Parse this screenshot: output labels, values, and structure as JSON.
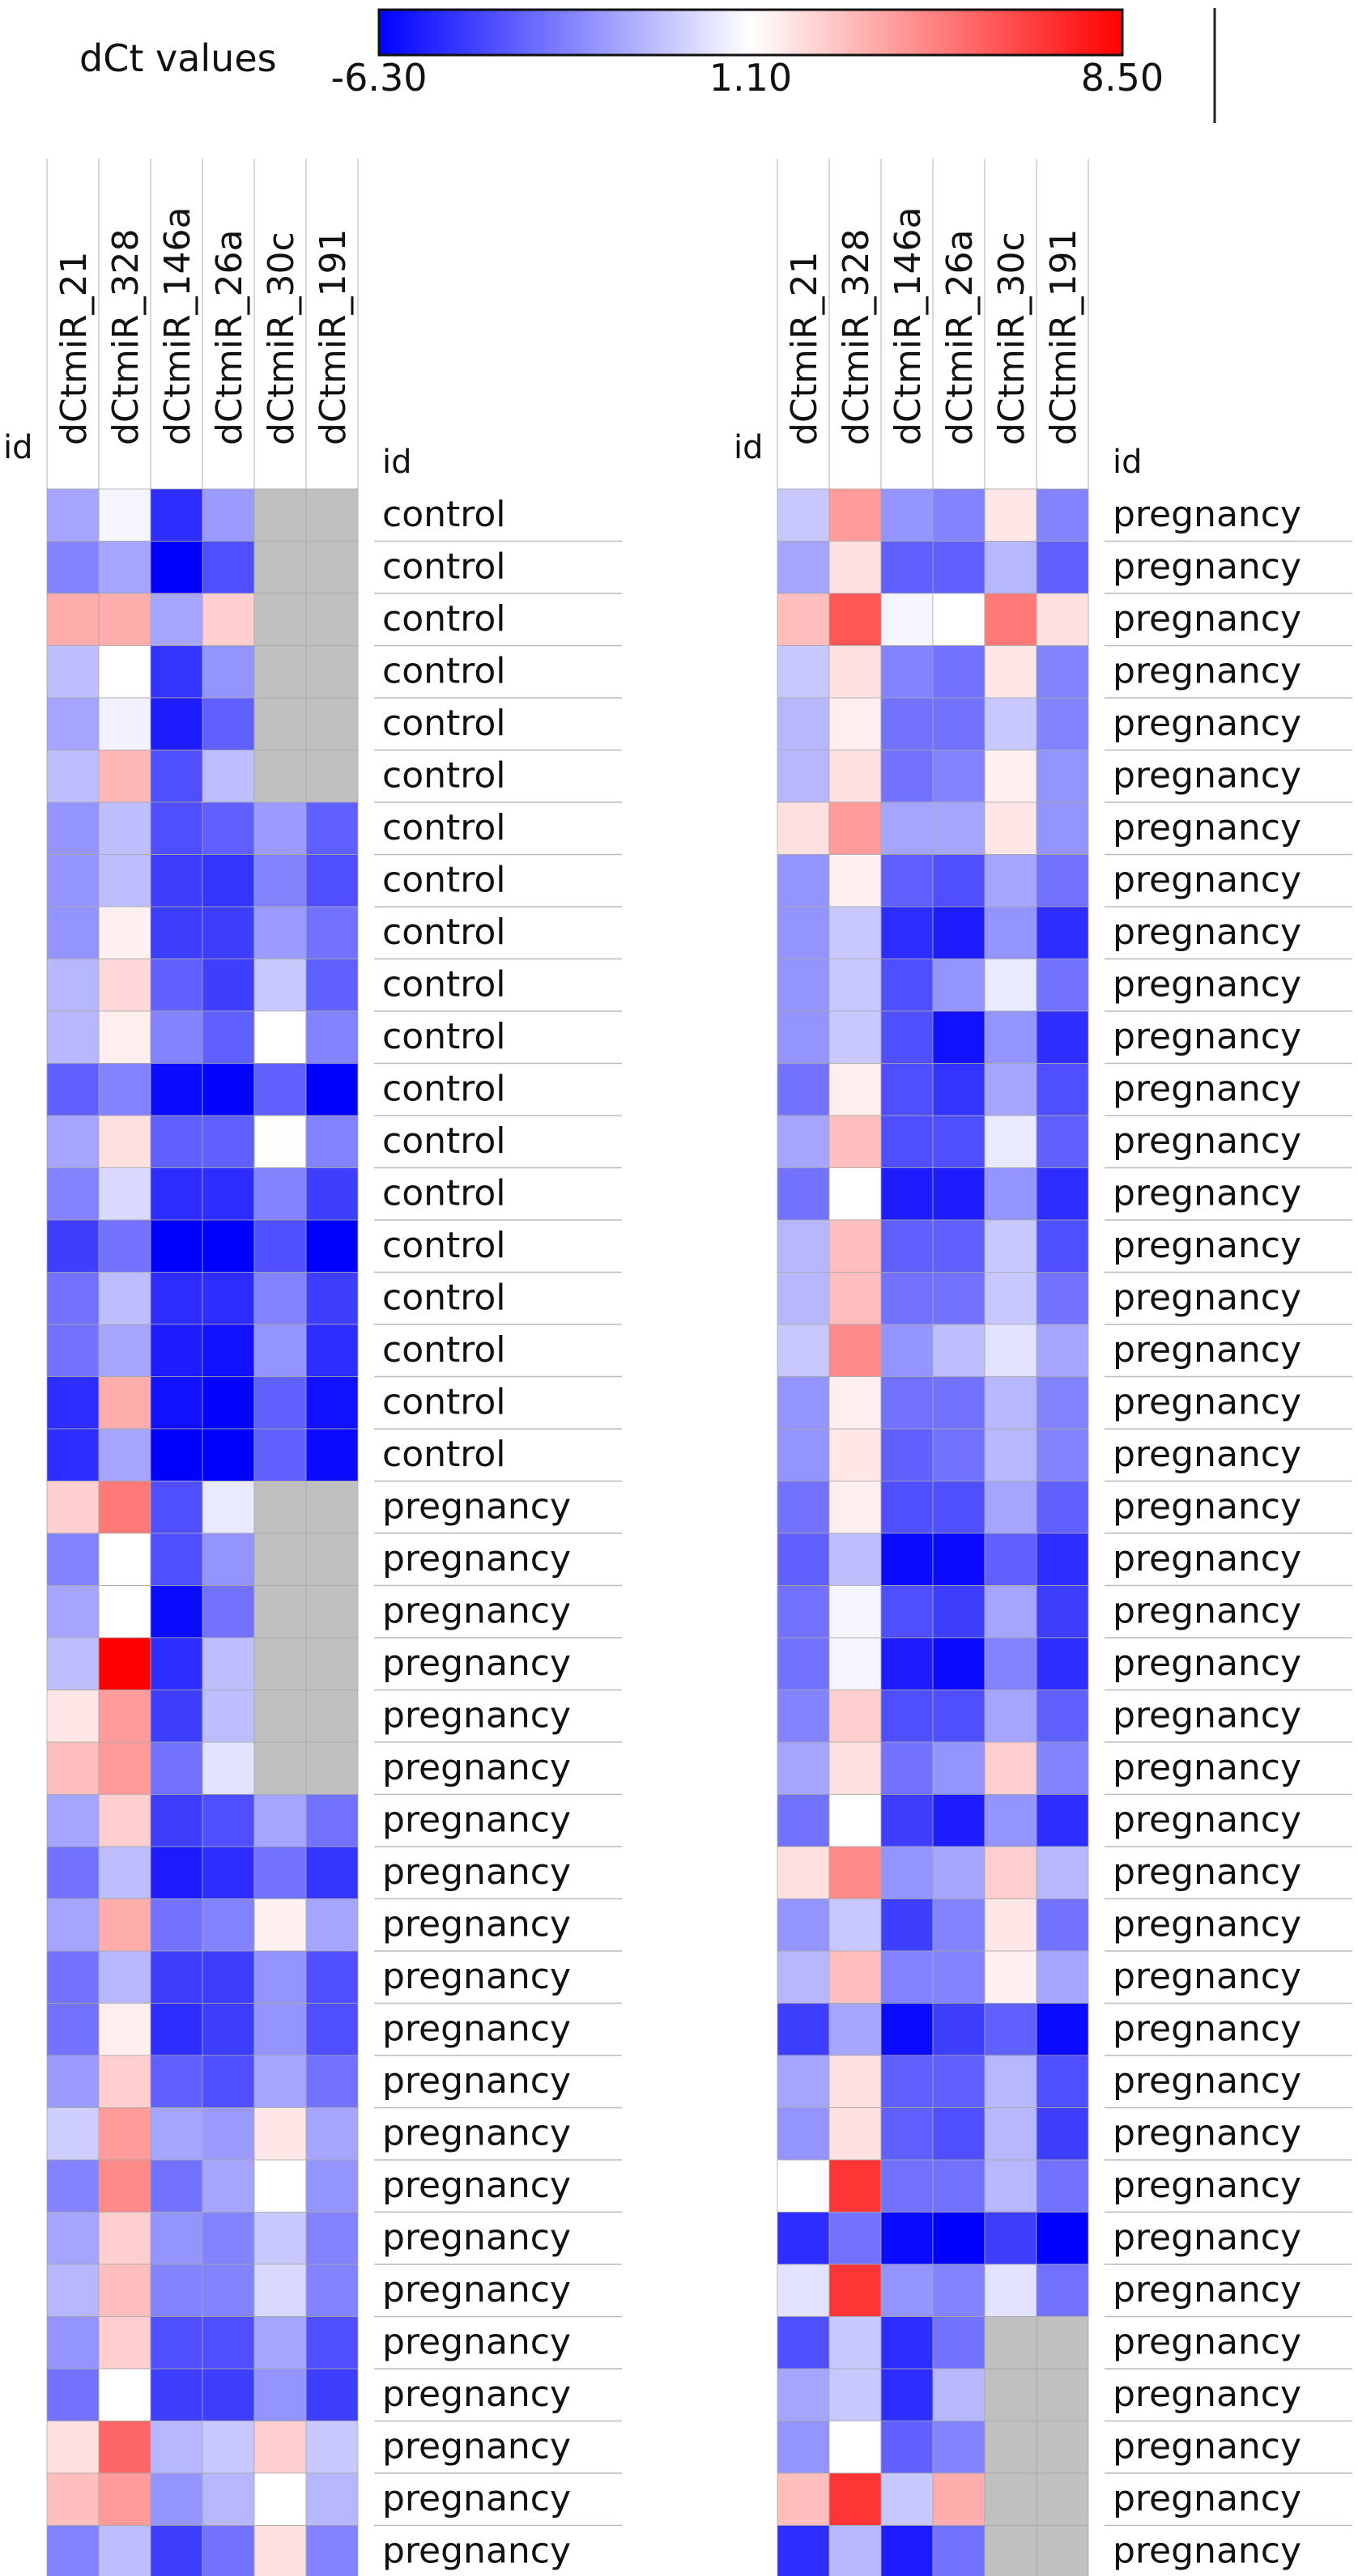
{
  "chart_data": {
    "type": "heatmap",
    "colorbar": {
      "label": "dCt values",
      "min": -6.3,
      "mid": 1.1,
      "max": 8.5,
      "tick_labels": [
        "-6.30",
        "1.10",
        "8.50"
      ],
      "colors": {
        "low": "#0000ff",
        "mid": "#ffffff",
        "high": "#ff0000",
        "missing": "#c0c0c0"
      }
    },
    "columns": [
      "dCtmiR_21",
      "dCtmiR_328",
      "dCtmiR_146a",
      "dCtmiR_26a",
      "dCtmiR_30c",
      "dCtmiR_191"
    ],
    "id_header": "id",
    "panels": [
      {
        "rows": [
          {
            "id": "control",
            "values": [
              -1.5,
              0.8,
              -5.0,
              -1.8,
              null,
              null
            ]
          },
          {
            "id": "control",
            "values": [
              -2.5,
              -1.5,
              -6.3,
              -4.0,
              null,
              null
            ]
          },
          {
            "id": "control",
            "values": [
              3.5,
              3.5,
              -1.5,
              2.5,
              null,
              null
            ]
          },
          {
            "id": "control",
            "values": [
              -0.8,
              1.1,
              -4.8,
              -2.0,
              null,
              null
            ]
          },
          {
            "id": "control",
            "values": [
              -1.5,
              0.7,
              -5.5,
              -3.5,
              null,
              null
            ]
          },
          {
            "id": "control",
            "values": [
              -0.8,
              3.2,
              -4.0,
              -0.8,
              null,
              null
            ]
          },
          {
            "id": "control",
            "values": [
              -2.0,
              -0.8,
              -4.0,
              -3.5,
              -1.8,
              -3.5
            ]
          },
          {
            "id": "control",
            "values": [
              -2.0,
              -0.8,
              -4.5,
              -4.8,
              -2.5,
              -4.0
            ]
          },
          {
            "id": "control",
            "values": [
              -2.0,
              1.5,
              -4.5,
              -4.5,
              -1.8,
              -3.0
            ]
          },
          {
            "id": "control",
            "values": [
              -1.0,
              2.2,
              -3.5,
              -4.5,
              -0.5,
              -3.5
            ]
          },
          {
            "id": "control",
            "values": [
              -1.0,
              1.6,
              -2.5,
              -3.5,
              1.1,
              -2.5
            ]
          },
          {
            "id": "control",
            "values": [
              -3.5,
              -2.5,
              -6.0,
              -6.2,
              -3.5,
              -6.3
            ]
          },
          {
            "id": "control",
            "values": [
              -1.5,
              2.0,
              -3.5,
              -3.5,
              1.2,
              -2.5
            ]
          },
          {
            "id": "control",
            "values": [
              -2.5,
              0.0,
              -5.0,
              -5.0,
              -2.5,
              -4.5
            ]
          },
          {
            "id": "control",
            "values": [
              -4.5,
              -3.0,
              -6.3,
              -6.3,
              -4.0,
              -6.3
            ]
          },
          {
            "id": "control",
            "values": [
              -3.0,
              -0.8,
              -5.0,
              -5.0,
              -2.5,
              -4.5
            ]
          },
          {
            "id": "control",
            "values": [
              -3.0,
              -1.5,
              -5.5,
              -5.8,
              -2.0,
              -5.0
            ]
          },
          {
            "id": "control",
            "values": [
              -5.0,
              3.5,
              -5.8,
              -6.2,
              -3.5,
              -5.8
            ]
          },
          {
            "id": "control",
            "values": [
              -5.0,
              -1.5,
              -6.3,
              -6.3,
              -3.5,
              -6.0
            ]
          },
          {
            "id": "pregnancy",
            "values": [
              2.5,
              5.0,
              -4.0,
              0.5,
              null,
              null
            ]
          },
          {
            "id": "pregnancy",
            "values": [
              -2.5,
              1.1,
              -4.0,
              -2.0,
              null,
              null
            ]
          },
          {
            "id": "pregnancy",
            "values": [
              -1.5,
              1.1,
              -6.0,
              -3.0,
              null,
              null
            ]
          },
          {
            "id": "pregnancy",
            "values": [
              -0.8,
              8.5,
              -5.0,
              -0.8,
              null,
              null
            ]
          },
          {
            "id": "pregnancy",
            "values": [
              1.8,
              4.0,
              -4.5,
              -0.8,
              null,
              null
            ]
          },
          {
            "id": "pregnancy",
            "values": [
              3.0,
              4.0,
              -3.0,
              0.3,
              null,
              null
            ]
          },
          {
            "id": "pregnancy",
            "values": [
              -1.5,
              2.5,
              -4.5,
              -4.0,
              -1.5,
              -3.0
            ]
          },
          {
            "id": "pregnancy",
            "values": [
              -3.0,
              -0.8,
              -5.5,
              -5.0,
              -3.0,
              -4.8
            ]
          },
          {
            "id": "pregnancy",
            "values": [
              -1.5,
              3.5,
              -3.0,
              -2.5,
              1.5,
              -1.5
            ]
          },
          {
            "id": "pregnancy",
            "values": [
              -3.0,
              -1.0,
              -4.5,
              -4.5,
              -2.0,
              -4.0
            ]
          },
          {
            "id": "pregnancy",
            "values": [
              -3.0,
              1.6,
              -5.0,
              -4.5,
              -2.0,
              -4.0
            ]
          },
          {
            "id": "pregnancy",
            "values": [
              -1.8,
              2.5,
              -3.5,
              -4.0,
              -1.5,
              -3.0
            ]
          },
          {
            "id": "pregnancy",
            "values": [
              -0.3,
              4.0,
              -1.5,
              -1.8,
              1.8,
              -1.5
            ]
          },
          {
            "id": "pregnancy",
            "values": [
              -2.5,
              4.5,
              -3.0,
              -1.5,
              1.1,
              -2.0
            ]
          },
          {
            "id": "pregnancy",
            "values": [
              -1.5,
              2.5,
              -2.0,
              -2.5,
              -0.5,
              -2.5
            ]
          },
          {
            "id": "pregnancy",
            "values": [
              -1.0,
              3.0,
              -2.5,
              -2.5,
              0.0,
              -2.5
            ]
          },
          {
            "id": "pregnancy",
            "values": [
              -2.0,
              2.5,
              -4.0,
              -4.0,
              -1.5,
              -4.0
            ]
          },
          {
            "id": "pregnancy",
            "values": [
              -3.0,
              1.1,
              -4.5,
              -4.5,
              -2.0,
              -4.5
            ]
          },
          {
            "id": "pregnancy",
            "values": [
              2.0,
              5.5,
              -1.0,
              -0.5,
              2.5,
              -0.5
            ]
          },
          {
            "id": "pregnancy",
            "values": [
              3.0,
              4.0,
              -2.0,
              -1.0,
              1.1,
              -1.0
            ]
          },
          {
            "id": "pregnancy",
            "values": [
              -2.5,
              -0.8,
              -4.5,
              -3.0,
              2.0,
              -2.5
            ]
          }
        ]
      },
      {
        "rows": [
          {
            "id": "pregnancy",
            "values": [
              -0.5,
              4.0,
              -2.0,
              -2.5,
              1.8,
              -2.5
            ]
          },
          {
            "id": "pregnancy",
            "values": [
              -1.5,
              2.0,
              -3.5,
              -3.5,
              -1.0,
              -3.5
            ]
          },
          {
            "id": "pregnancy",
            "values": [
              3.0,
              6.0,
              0.8,
              1.1,
              5.0,
              2.0
            ]
          },
          {
            "id": "pregnancy",
            "values": [
              -0.5,
              2.0,
              -2.5,
              -3.0,
              1.8,
              -2.5
            ]
          },
          {
            "id": "pregnancy",
            "values": [
              -1.0,
              1.6,
              -3.0,
              -3.0,
              -0.5,
              -2.5
            ]
          },
          {
            "id": "pregnancy",
            "values": [
              -1.0,
              2.0,
              -3.0,
              -2.5,
              1.5,
              -2.0
            ]
          },
          {
            "id": "pregnancy",
            "values": [
              2.0,
              4.0,
              -1.5,
              -1.5,
              1.8,
              -2.0
            ]
          },
          {
            "id": "pregnancy",
            "values": [
              -2.0,
              1.5,
              -3.5,
              -4.0,
              -1.5,
              -3.0
            ]
          },
          {
            "id": "pregnancy",
            "values": [
              -2.0,
              -0.5,
              -5.0,
              -5.5,
              -2.0,
              -5.0
            ]
          },
          {
            "id": "pregnancy",
            "values": [
              -2.0,
              -0.5,
              -4.0,
              -2.0,
              0.5,
              -3.0
            ]
          },
          {
            "id": "pregnancy",
            "values": [
              -2.0,
              -0.5,
              -4.0,
              -5.8,
              -2.0,
              -5.0
            ]
          },
          {
            "id": "pregnancy",
            "values": [
              -3.0,
              1.6,
              -4.0,
              -4.8,
              -1.5,
              -4.0
            ]
          },
          {
            "id": "pregnancy",
            "values": [
              -1.5,
              3.0,
              -4.0,
              -4.0,
              0.5,
              -3.5
            ]
          },
          {
            "id": "pregnancy",
            "values": [
              -3.0,
              1.1,
              -5.5,
              -5.5,
              -2.0,
              -5.0
            ]
          },
          {
            "id": "pregnancy",
            "values": [
              -1.0,
              3.0,
              -3.5,
              -3.5,
              -0.5,
              -4.0
            ]
          },
          {
            "id": "pregnancy",
            "values": [
              -1.0,
              3.0,
              -3.0,
              -3.0,
              -0.5,
              -3.0
            ]
          },
          {
            "id": "pregnancy",
            "values": [
              -0.5,
              4.5,
              -2.0,
              -0.8,
              0.3,
              -1.5
            ]
          },
          {
            "id": "pregnancy",
            "values": [
              -2.0,
              1.6,
              -3.0,
              -3.0,
              -1.0,
              -2.5
            ]
          },
          {
            "id": "pregnancy",
            "values": [
              -2.0,
              1.8,
              -3.5,
              -3.0,
              -1.0,
              -2.5
            ]
          },
          {
            "id": "pregnancy",
            "values": [
              -3.0,
              1.6,
              -4.0,
              -4.0,
              -1.5,
              -3.5
            ]
          },
          {
            "id": "pregnancy",
            "values": [
              -3.5,
              -0.8,
              -6.0,
              -6.0,
              -3.5,
              -5.0
            ]
          },
          {
            "id": "pregnancy",
            "values": [
              -3.0,
              0.8,
              -4.0,
              -4.5,
              -1.5,
              -4.5
            ]
          },
          {
            "id": "pregnancy",
            "values": [
              -3.0,
              0.8,
              -5.5,
              -6.0,
              -2.5,
              -5.0
            ]
          },
          {
            "id": "pregnancy",
            "values": [
              -2.5,
              2.5,
              -4.0,
              -4.0,
              -1.5,
              -3.5
            ]
          },
          {
            "id": "pregnancy",
            "values": [
              -1.5,
              2.0,
              -3.0,
              -2.0,
              2.5,
              -2.5
            ]
          },
          {
            "id": "pregnancy",
            "values": [
              -3.0,
              1.1,
              -4.5,
              -5.5,
              -2.0,
              -5.0
            ]
          },
          {
            "id": "pregnancy",
            "values": [
              2.0,
              4.5,
              -2.0,
              -1.5,
              2.5,
              -1.0
            ]
          },
          {
            "id": "pregnancy",
            "values": [
              -2.0,
              -0.5,
              -4.5,
              -2.5,
              1.8,
              -3.0
            ]
          },
          {
            "id": "pregnancy",
            "values": [
              -1.0,
              3.0,
              -2.5,
              -2.5,
              1.5,
              -1.5
            ]
          },
          {
            "id": "pregnancy",
            "values": [
              -4.5,
              -1.5,
              -6.0,
              -4.5,
              -3.5,
              -6.0
            ]
          },
          {
            "id": "pregnancy",
            "values": [
              -1.5,
              2.0,
              -3.5,
              -3.5,
              -1.0,
              -4.0
            ]
          },
          {
            "id": "pregnancy",
            "values": [
              -2.0,
              2.0,
              -3.5,
              -4.0,
              -1.0,
              -4.5
            ]
          },
          {
            "id": "pregnancy",
            "values": [
              1.1,
              7.0,
              -3.0,
              -3.0,
              -1.0,
              -3.0
            ]
          },
          {
            "id": "pregnancy",
            "values": [
              -5.0,
              -3.0,
              -6.0,
              -6.3,
              -4.5,
              -6.3
            ]
          },
          {
            "id": "pregnancy",
            "values": [
              0.3,
              7.0,
              -2.0,
              -2.5,
              0.3,
              -3.0
            ]
          },
          {
            "id": "pregnancy",
            "values": [
              -4.0,
              -0.5,
              -5.0,
              -3.0,
              null,
              null
            ]
          },
          {
            "id": "pregnancy",
            "values": [
              -1.5,
              -0.5,
              -5.0,
              -1.0,
              null,
              null
            ]
          },
          {
            "id": "pregnancy",
            "values": [
              -2.0,
              1.1,
              -3.5,
              -2.5,
              null,
              null
            ]
          },
          {
            "id": "pregnancy",
            "values": [
              3.0,
              7.0,
              -0.5,
              3.5,
              null,
              null
            ]
          },
          {
            "id": "pregnancy",
            "values": [
              -5.0,
              -1.0,
              -5.5,
              -3.0,
              null,
              null
            ]
          }
        ]
      }
    ]
  }
}
